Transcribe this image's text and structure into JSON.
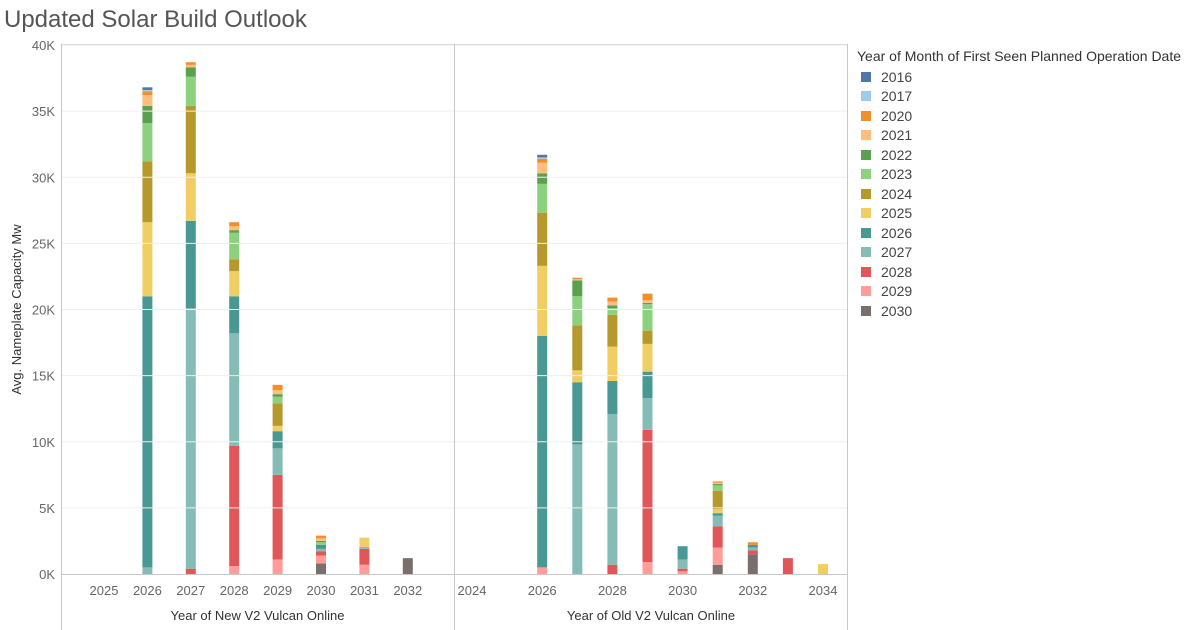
{
  "title": "Updated Solar Build Outlook",
  "legend": {
    "title": "Year of Month of First Seen Planned Operation Date",
    "items": [
      {
        "label": "2016",
        "color": "#4e79a7"
      },
      {
        "label": "2017",
        "color": "#a0cbe8"
      },
      {
        "label": "2020",
        "color": "#f28e2b"
      },
      {
        "label": "2021",
        "color": "#ffbe7d"
      },
      {
        "label": "2022",
        "color": "#59a14f"
      },
      {
        "label": "2023",
        "color": "#8cd17d"
      },
      {
        "label": "2024",
        "color": "#b6992d"
      },
      {
        "label": "2025",
        "color": "#f1ce63"
      },
      {
        "label": "2026",
        "color": "#499894"
      },
      {
        "label": "2027",
        "color": "#86bcb6"
      },
      {
        "label": "2028",
        "color": "#e15759"
      },
      {
        "label": "2029",
        "color": "#ff9d9a"
      },
      {
        "label": "2030",
        "color": "#79706e"
      }
    ]
  },
  "chart_data": [
    {
      "type": "bar",
      "stacked": true,
      "xlabel": "Year of New V2 Vulcan Online",
      "ylabel": "Avg. Nameplate Capacity Mw",
      "ylim": [
        0,
        40000
      ],
      "yticks": [
        0,
        5000,
        10000,
        15000,
        20000,
        25000,
        30000,
        35000,
        40000
      ],
      "ytick_labels": [
        "0K",
        "5K",
        "10K",
        "15K",
        "20K",
        "25K",
        "30K",
        "35K",
        "40K"
      ],
      "grid": true,
      "categories": [
        "2025",
        "2026",
        "2027",
        "2028",
        "2029",
        "2030",
        "2031",
        "2032"
      ],
      "series": [
        {
          "name": "2030",
          "values": [
            0,
            0,
            0,
            0,
            0,
            800,
            0,
            1200
          ]
        },
        {
          "name": "2029",
          "values": [
            0,
            0,
            0,
            600,
            1100,
            600,
            700,
            0
          ]
        },
        {
          "name": "2028",
          "values": [
            0,
            0,
            400,
            9100,
            6400,
            300,
            1200,
            0
          ]
        },
        {
          "name": "2027",
          "values": [
            0,
            500,
            19700,
            8500,
            2000,
            200,
            150,
            0
          ]
        },
        {
          "name": "2026",
          "values": [
            0,
            20500,
            6600,
            2800,
            1300,
            300,
            0,
            0
          ]
        },
        {
          "name": "2025",
          "values": [
            0,
            5600,
            3600,
            1900,
            400,
            0,
            700,
            0
          ]
        },
        {
          "name": "2024",
          "values": [
            0,
            4600,
            5100,
            900,
            1700,
            0,
            0,
            0
          ]
        },
        {
          "name": "2023",
          "values": [
            0,
            2900,
            2200,
            2000,
            500,
            200,
            0,
            0
          ]
        },
        {
          "name": "2022",
          "values": [
            0,
            1300,
            700,
            200,
            200,
            100,
            0,
            0
          ]
        },
        {
          "name": "2021",
          "values": [
            0,
            800,
            200,
            300,
            300,
            200,
            0,
            0
          ]
        },
        {
          "name": "2020",
          "values": [
            0,
            300,
            200,
            300,
            400,
            200,
            0,
            0
          ]
        },
        {
          "name": "2017",
          "values": [
            0,
            100,
            0,
            0,
            0,
            0,
            0,
            0
          ]
        },
        {
          "name": "2016",
          "values": [
            0,
            200,
            0,
            0,
            0,
            0,
            0,
            0
          ]
        }
      ]
    },
    {
      "type": "bar",
      "stacked": true,
      "xlabel": "Year of Old V2 Vulcan Online",
      "ylim": [
        0,
        40000
      ],
      "grid": true,
      "categories": [
        "2024",
        "2025",
        "2026",
        "2027",
        "2028",
        "2029",
        "2030",
        "2031",
        "2032",
        "2033",
        "2034"
      ],
      "tick_labels": [
        "2024",
        "",
        "2026",
        "",
        "2028",
        "",
        "2030",
        "",
        "2032",
        "",
        "2034"
      ],
      "series": [
        {
          "name": "2030",
          "values": [
            0,
            0,
            0,
            0,
            0,
            0,
            0,
            700,
            1500,
            0,
            0
          ]
        },
        {
          "name": "2029",
          "values": [
            0,
            0,
            500,
            0,
            0,
            900,
            200,
            1300,
            0,
            0,
            0
          ]
        },
        {
          "name": "2028",
          "values": [
            0,
            0,
            0,
            0,
            700,
            10000,
            200,
            1600,
            300,
            1200,
            0
          ]
        },
        {
          "name": "2027",
          "values": [
            0,
            0,
            0,
            9800,
            11400,
            2400,
            700,
            800,
            200,
            0,
            0
          ]
        },
        {
          "name": "2026",
          "values": [
            0,
            0,
            17500,
            4700,
            2500,
            2000,
            1000,
            200,
            200,
            0,
            0
          ]
        },
        {
          "name": "2025",
          "values": [
            0,
            0,
            5300,
            900,
            2600,
            2100,
            0,
            300,
            0,
            0,
            750
          ]
        },
        {
          "name": "2024",
          "values": [
            0,
            0,
            4000,
            3400,
            2400,
            1000,
            0,
            1400,
            0,
            0,
            0
          ]
        },
        {
          "name": "2023",
          "values": [
            0,
            0,
            2200,
            2200,
            500,
            2000,
            0,
            400,
            0,
            0,
            0
          ]
        },
        {
          "name": "2022",
          "values": [
            0,
            0,
            800,
            1200,
            200,
            100,
            0,
            100,
            0,
            0,
            0
          ]
        },
        {
          "name": "2021",
          "values": [
            0,
            0,
            800,
            100,
            300,
            200,
            0,
            100,
            0,
            0,
            0
          ]
        },
        {
          "name": "2020",
          "values": [
            0,
            0,
            300,
            100,
            300,
            500,
            0,
            100,
            200,
            0,
            0
          ]
        },
        {
          "name": "2017",
          "values": [
            0,
            0,
            100,
            0,
            0,
            0,
            0,
            0,
            0,
            0,
            0
          ]
        },
        {
          "name": "2016",
          "values": [
            0,
            0,
            200,
            0,
            0,
            0,
            0,
            0,
            0,
            0,
            0
          ]
        }
      ]
    }
  ]
}
